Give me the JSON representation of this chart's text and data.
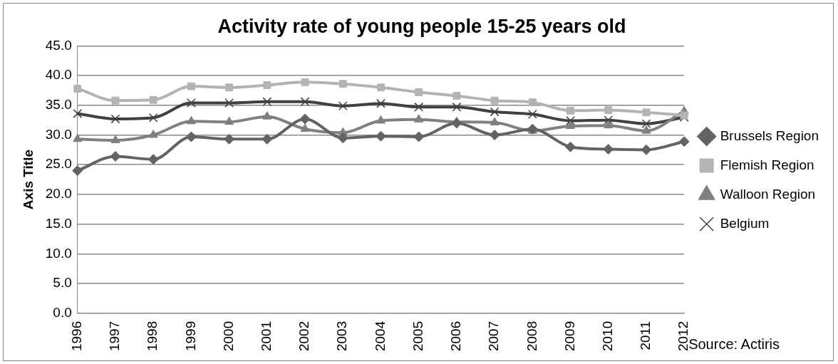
{
  "chart_data": {
    "type": "line",
    "title": "Activity rate of young people 15-25 years old",
    "ylabel": "Axis Title",
    "categories": [
      "1996",
      "1997",
      "1998",
      "1999",
      "2000",
      "2001",
      "2002",
      "2003",
      "2004",
      "2005",
      "2006",
      "2007",
      "2008",
      "2009",
      "2010",
      "2011",
      "2012"
    ],
    "series": [
      {
        "name": "Brussels Region",
        "color": "#636363",
        "marker": "diamond",
        "values": [
          24.0,
          26.4,
          25.9,
          29.7,
          29.3,
          29.3,
          32.7,
          29.5,
          29.8,
          29.7,
          32.0,
          30.0,
          31.0,
          28.0,
          27.6,
          27.5,
          28.9
        ]
      },
      {
        "name": "Flemish Region",
        "color": "#b3b3b3",
        "marker": "square",
        "values": [
          37.8,
          35.8,
          35.9,
          38.2,
          38.0,
          38.4,
          38.9,
          38.6,
          38.0,
          37.2,
          36.6,
          35.8,
          35.5,
          34.1,
          34.2,
          33.8,
          33.3
        ]
      },
      {
        "name": "Walloon Region",
        "color": "#808080",
        "marker": "triangle",
        "values": [
          29.3,
          29.1,
          30.0,
          32.3,
          32.2,
          33.1,
          31.0,
          30.4,
          32.4,
          32.6,
          32.2,
          32.1,
          30.7,
          31.5,
          31.6,
          30.7,
          34.0
        ]
      },
      {
        "name": "Belgium",
        "color": "#404040",
        "marker": "cross",
        "values": [
          33.6,
          32.7,
          32.9,
          35.4,
          35.4,
          35.6,
          35.6,
          34.9,
          35.3,
          34.7,
          34.7,
          33.9,
          33.5,
          32.4,
          32.5,
          31.9,
          33.0
        ]
      }
    ],
    "ylim": [
      0,
      45
    ],
    "yticks": [
      {
        "value": 0,
        "label": "0.0"
      },
      {
        "value": 5,
        "label": "5.0"
      },
      {
        "value": 10,
        "label": "10.0"
      },
      {
        "value": 15,
        "label": "15.0"
      },
      {
        "value": 20,
        "label": "20.0"
      },
      {
        "value": 25,
        "label": "25.0"
      },
      {
        "value": 30,
        "label": "30.0"
      },
      {
        "value": 35,
        "label": "35.0"
      },
      {
        "value": 40,
        "label": "40.0"
      },
      {
        "value": 45,
        "label": "45.0"
      }
    ],
    "grid": "y",
    "legend": "right",
    "annotations": [
      "Source: Actiris"
    ]
  }
}
